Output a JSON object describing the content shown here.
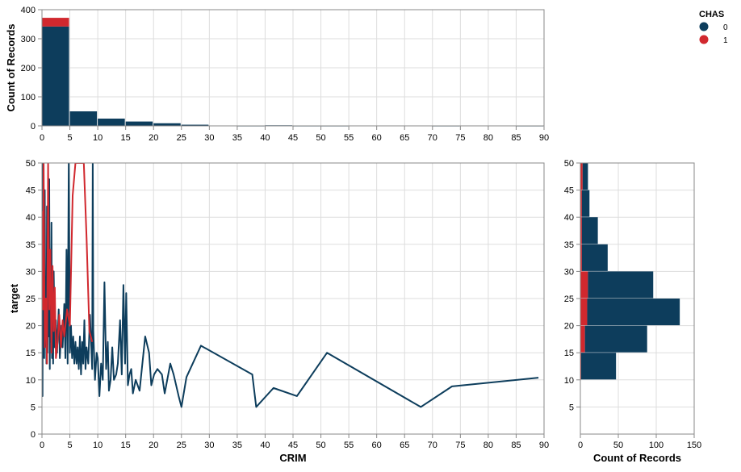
{
  "colors": {
    "chas0": "#0d3d5c",
    "chas1": "#d1282e"
  },
  "legend": {
    "title": "CHAS",
    "items": [
      "0",
      "1"
    ]
  },
  "chart_data": [
    {
      "id": "top-histogram",
      "type": "bar",
      "stacked": true,
      "xlabel": "CRIM",
      "ylabel": "Count of Records",
      "xlim": [
        0,
        90
      ],
      "ylim": [
        0,
        400
      ],
      "xticks": [
        0,
        5,
        10,
        15,
        20,
        25,
        30,
        35,
        40,
        45,
        50,
        55,
        60,
        65,
        70,
        75,
        80,
        85,
        90
      ],
      "yticks": [
        0,
        100,
        200,
        300,
        400
      ],
      "bin_width": 5,
      "bins_start": [
        0,
        5,
        10,
        15,
        20,
        25,
        30,
        35,
        40,
        45,
        50,
        55,
        60,
        65,
        70,
        75,
        80,
        85
      ],
      "series": [
        {
          "key": "chas0",
          "values": [
            342,
            50,
            25,
            15,
            9,
            4,
            0,
            1,
            2,
            1,
            1,
            0,
            0,
            0,
            1,
            0,
            0,
            1
          ]
        },
        {
          "key": "chas1",
          "values": [
            30,
            0,
            0,
            0,
            0,
            0,
            0,
            0,
            0,
            0,
            0,
            0,
            0,
            0,
            0,
            0,
            0,
            0
          ]
        }
      ]
    },
    {
      "id": "main-line",
      "type": "line",
      "xlabel": "CRIM",
      "ylabel": "target",
      "xlim": [
        0,
        90
      ],
      "ylim": [
        0,
        50
      ],
      "xticks": [
        0,
        5,
        10,
        15,
        20,
        25,
        30,
        35,
        40,
        45,
        50,
        55,
        60,
        65,
        70,
        75,
        80,
        85,
        90
      ],
      "yticks": [
        0,
        5,
        10,
        15,
        20,
        25,
        30,
        35,
        40,
        45,
        50
      ],
      "series": [
        {
          "key": "chas0",
          "points": [
            [
              0.0,
              24
            ],
            [
              0.05,
              34
            ],
            [
              0.1,
              7
            ],
            [
              0.15,
              50
            ],
            [
              0.2,
              22
            ],
            [
              0.3,
              36
            ],
            [
              0.4,
              14
            ],
            [
              0.5,
              45
            ],
            [
              0.6,
              20
            ],
            [
              0.7,
              27
            ],
            [
              0.8,
              13
            ],
            [
              0.9,
              42
            ],
            [
              1.0,
              15
            ],
            [
              1.1,
              35
            ],
            [
              1.2,
              18
            ],
            [
              1.3,
              47
            ],
            [
              1.4,
              12
            ],
            [
              1.5,
              31
            ],
            [
              1.6,
              17
            ],
            [
              1.7,
              39
            ],
            [
              1.8,
              14
            ],
            [
              1.9,
              25
            ],
            [
              2.0,
              13
            ],
            [
              2.1,
              30
            ],
            [
              2.3,
              16
            ],
            [
              2.5,
              21
            ],
            [
              2.7,
              15
            ],
            [
              3.0,
              23
            ],
            [
              3.2,
              14
            ],
            [
              3.5,
              20
            ],
            [
              3.7,
              16
            ],
            [
              4.0,
              24
            ],
            [
              4.2,
              14
            ],
            [
              4.4,
              34
            ],
            [
              4.6,
              13
            ],
            [
              4.8,
              50
            ],
            [
              5.0,
              15
            ],
            [
              5.2,
              20
            ],
            [
              5.4,
              14
            ],
            [
              5.6,
              18
            ],
            [
              5.8,
              13
            ],
            [
              6.0,
              17
            ],
            [
              6.2,
              13
            ],
            [
              6.4,
              16
            ],
            [
              6.6,
              12
            ],
            [
              6.8,
              18
            ],
            [
              7.0,
              11
            ],
            [
              7.2,
              17
            ],
            [
              7.4,
              13
            ],
            [
              7.6,
              21
            ],
            [
              7.8,
              12
            ],
            [
              8.0,
              16
            ],
            [
              8.3,
              13
            ],
            [
              8.6,
              22
            ],
            [
              9.0,
              12
            ],
            [
              9.1,
              50
            ],
            [
              9.2,
              19
            ],
            [
              9.5,
              10
            ],
            [
              9.8,
              15
            ],
            [
              10.0,
              14
            ],
            [
              10.3,
              7
            ],
            [
              10.6,
              13
            ],
            [
              10.9,
              10
            ],
            [
              11.2,
              28
            ],
            [
              11.5,
              12
            ],
            [
              11.8,
              17
            ],
            [
              12.0,
              8
            ],
            [
              12.3,
              10
            ],
            [
              12.6,
              16
            ],
            [
              12.9,
              10
            ],
            [
              13.3,
              11
            ],
            [
              13.6,
              13
            ],
            [
              14.0,
              21
            ],
            [
              14.3,
              11
            ],
            [
              14.6,
              27.5
            ],
            [
              14.9,
              13
            ],
            [
              15.1,
              26
            ],
            [
              15.4,
              9
            ],
            [
              15.7,
              11
            ],
            [
              16.0,
              12
            ],
            [
              16.3,
              7.5
            ],
            [
              16.8,
              10
            ],
            [
              17.5,
              8
            ],
            [
              18.0,
              13
            ],
            [
              18.5,
              18
            ],
            [
              19.2,
              15
            ],
            [
              19.6,
              9
            ],
            [
              20.1,
              11
            ],
            [
              20.7,
              12
            ],
            [
              21.5,
              11
            ],
            [
              22.0,
              7.5
            ],
            [
              23.0,
              13
            ],
            [
              23.6,
              11
            ],
            [
              24.5,
              7
            ],
            [
              25.0,
              5
            ],
            [
              25.9,
              10.5
            ],
            [
              28.5,
              16.3
            ],
            [
              37.7,
              11
            ],
            [
              38.4,
              5
            ],
            [
              41.5,
              8.5
            ],
            [
              45.7,
              7
            ],
            [
              51.1,
              15
            ],
            [
              67.9,
              5
            ],
            [
              73.5,
              8.8
            ],
            [
              89.0,
              10.4
            ]
          ]
        },
        {
          "key": "chas1",
          "points": [
            [
              0.01,
              24
            ],
            [
              0.1,
              41
            ],
            [
              0.2,
              23
            ],
            [
              0.3,
              50
            ],
            [
              0.5,
              16
            ],
            [
              0.7,
              25
            ],
            [
              0.9,
              13
            ],
            [
              1.1,
              50
            ],
            [
              1.3,
              23
            ],
            [
              1.5,
              34
            ],
            [
              1.7,
              15
            ],
            [
              1.9,
              31
            ],
            [
              2.1,
              19
            ],
            [
              2.3,
              27
            ],
            [
              2.5,
              14
            ],
            [
              2.8,
              17
            ],
            [
              3.1,
              22
            ],
            [
              3.4,
              16
            ],
            [
              3.7,
              21
            ],
            [
              4.0,
              18
            ],
            [
              4.5,
              23
            ],
            [
              5.0,
              20
            ],
            [
              5.5,
              44
            ],
            [
              6.0,
              50
            ],
            [
              7.5,
              50
            ],
            [
              8.0,
              36
            ],
            [
              8.5,
              19
            ],
            [
              9.0,
              17
            ]
          ]
        }
      ]
    },
    {
      "id": "right-histogram",
      "type": "bar",
      "orientation": "horizontal",
      "stacked": true,
      "xlabel": "Count of Records",
      "ylabel": "",
      "xlim": [
        0,
        150
      ],
      "ylim": [
        0,
        50
      ],
      "xticks": [
        0,
        50,
        100,
        150
      ],
      "yticks": [
        5,
        10,
        15,
        20,
        25,
        30,
        35,
        40,
        45,
        50
      ],
      "bin_width": 5,
      "bins_start": [
        5,
        10,
        15,
        20,
        25,
        30,
        35,
        40,
        45
      ],
      "series": [
        {
          "key": "chas1",
          "values": [
            0,
            1,
            6,
            9,
            10,
            2,
            2,
            2,
            3
          ]
        },
        {
          "key": "chas0",
          "values": [
            0,
            46,
            82,
            122,
            86,
            34,
            21,
            10,
            7
          ]
        }
      ]
    }
  ]
}
